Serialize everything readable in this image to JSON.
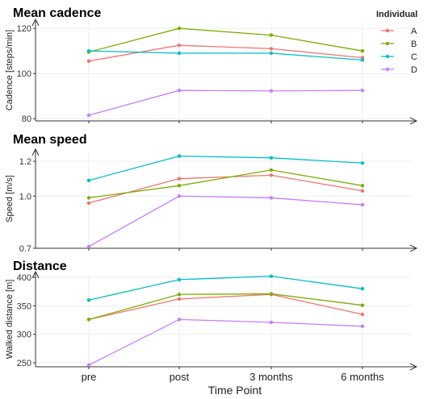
{
  "x_axis": {
    "label": "Time Point",
    "categories": [
      "pre",
      "post",
      "3 months",
      "6 months"
    ]
  },
  "legend": {
    "title": "Individual",
    "placement": "top-right",
    "entries": [
      {
        "name": "A",
        "color": "#F07470"
      },
      {
        "name": "B",
        "color": "#7CAE00"
      },
      {
        "name": "C",
        "color": "#00BFC4"
      },
      {
        "name": "D",
        "color": "#C77CFF"
      }
    ]
  },
  "chart_data": [
    {
      "type": "line",
      "title": "Mean cadence",
      "ylabel": "Cadence [steps/min]",
      "categories": [
        "pre",
        "post",
        "3 months",
        "6 months"
      ],
      "yticks": [
        80,
        100,
        120
      ],
      "ylim": [
        79,
        124
      ],
      "grid": true,
      "series": [
        {
          "name": "A",
          "color": "#F07470",
          "values": [
            105.5,
            112.5,
            111.0,
            107.0
          ]
        },
        {
          "name": "B",
          "color": "#7CAE00",
          "values": [
            109.5,
            120.0,
            117.0,
            110.0
          ]
        },
        {
          "name": "C",
          "color": "#00BFC4",
          "values": [
            110.0,
            109.0,
            109.0,
            106.0
          ]
        },
        {
          "name": "D",
          "color": "#C77CFF",
          "values": [
            81.5,
            92.5,
            92.3,
            92.5
          ]
        }
      ]
    },
    {
      "type": "line",
      "title": "Mean speed",
      "ylabel": "Speed  [m/s]",
      "categories": [
        "pre",
        "post",
        "3 months",
        "6 months"
      ],
      "yticks": [
        0.7,
        1.0,
        1.2
      ],
      "yticklabels": [
        "0.7",
        "1.0",
        "1.2"
      ],
      "ylim": [
        0.7,
        1.27
      ],
      "grid": true,
      "series": [
        {
          "name": "A",
          "color": "#F07470",
          "values": [
            0.96,
            1.1,
            1.12,
            1.03
          ]
        },
        {
          "name": "B",
          "color": "#7CAE00",
          "values": [
            0.99,
            1.06,
            1.15,
            1.06
          ]
        },
        {
          "name": "C",
          "color": "#00BFC4",
          "values": [
            1.09,
            1.23,
            1.22,
            1.19
          ]
        },
        {
          "name": "D",
          "color": "#C77CFF",
          "values": [
            0.71,
            1.0,
            0.99,
            0.95
          ]
        }
      ]
    },
    {
      "type": "line",
      "title": "Distance",
      "ylabel": "Walked distance [m]",
      "categories": [
        "pre",
        "post",
        "3 months",
        "6 months"
      ],
      "yticks": [
        250,
        300,
        350,
        400
      ],
      "ylim": [
        243,
        410
      ],
      "grid": true,
      "series": [
        {
          "name": "A",
          "color": "#F07470",
          "values": [
            326,
            362,
            370,
            335
          ]
        },
        {
          "name": "B",
          "color": "#7CAE00",
          "values": [
            326,
            370,
            371,
            351
          ]
        },
        {
          "name": "C",
          "color": "#00BFC4",
          "values": [
            360,
            396,
            402,
            380
          ]
        },
        {
          "name": "D",
          "color": "#C77CFF",
          "values": [
            246,
            326,
            321,
            314
          ]
        }
      ]
    }
  ]
}
